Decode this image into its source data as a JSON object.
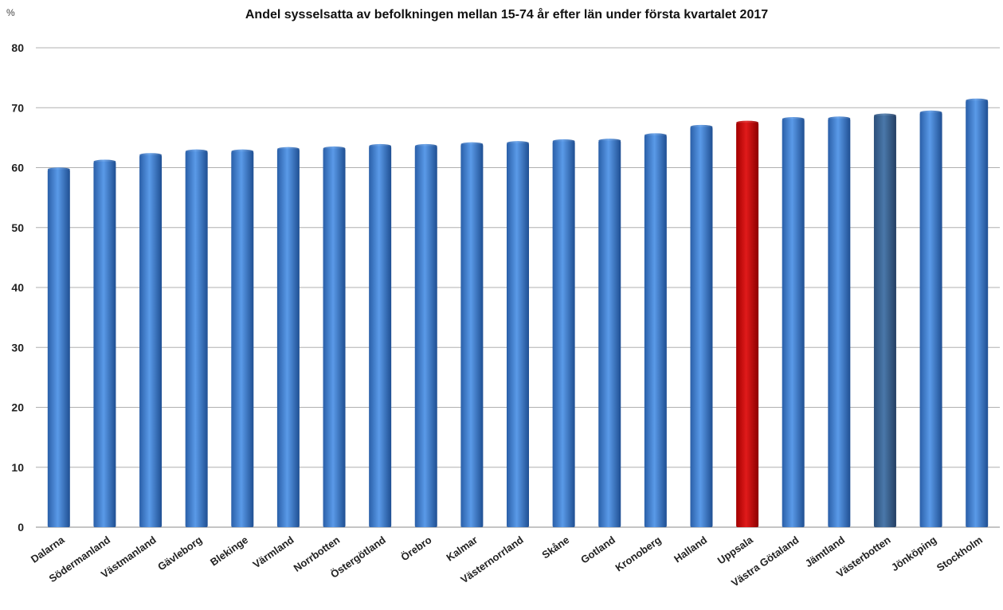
{
  "chart_data": {
    "type": "bar",
    "title": "Andel sysselsatta av befolkningen mellan 15-74 år efter län under första kvartalet 2017",
    "ylabel": "%",
    "xlabel": "",
    "ylim": [
      0,
      80
    ],
    "yticks": [
      0,
      10,
      20,
      30,
      40,
      50,
      60,
      70,
      80
    ],
    "grid": true,
    "categories": [
      "Dalarna",
      "Södermanland",
      "Västmanland",
      "Gävleborg",
      "Blekinge",
      "Värmland",
      "Norrbotten",
      "Östergötland",
      "Örebro",
      "Kalmar",
      "Västernorrland",
      "Skåne",
      "Gotland",
      "Kronoberg",
      "Halland",
      "Uppsala",
      "Västra Götaland",
      "Jämtland",
      "Västerbotten",
      "Jönköping",
      "Stockholm"
    ],
    "values": [
      59.7,
      61.0,
      62.1,
      62.7,
      62.7,
      63.1,
      63.2,
      63.6,
      63.6,
      63.9,
      64.1,
      64.4,
      64.5,
      65.4,
      66.8,
      67.5,
      68.1,
      68.2,
      68.7,
      69.2,
      71.2
    ],
    "colors": {
      "default": "#3f7fd0",
      "Uppsala": "#cc0000",
      "Västerbotten": "#3a6494"
    }
  }
}
